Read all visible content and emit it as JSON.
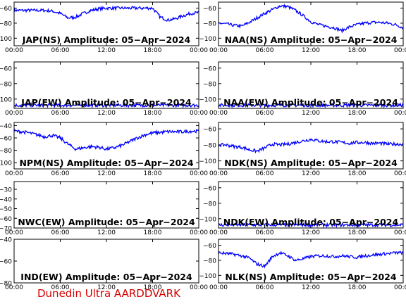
{
  "footer": {
    "credit": "Dunedin Ultra AARDDVARK"
  },
  "chart_data": [
    {
      "type": "line",
      "title": "JAP(NS) Amplitude: 05-Apr-2024",
      "x_ticks": [
        "00:00",
        "06:00",
        "12:00",
        "18:00",
        "00:00"
      ],
      "y_ticks": [
        -60,
        -80,
        -100
      ],
      "ylim": [
        -110,
        -52
      ],
      "series_color": "#0000ff",
      "x": [
        0,
        1,
        2,
        3,
        4,
        5,
        6,
        7,
        8,
        9,
        10,
        11,
        12,
        13,
        14,
        15,
        16,
        17,
        18,
        19,
        20,
        21,
        22,
        23,
        24
      ],
      "values": [
        -63,
        -63,
        -63,
        -63,
        -63,
        -64,
        -67,
        -73,
        -72,
        -67,
        -63,
        -61,
        -60,
        -60,
        -60,
        -60,
        -60,
        -60,
        -60,
        -72,
        -76,
        -74,
        -70,
        -67,
        -66
      ]
    },
    {
      "type": "line",
      "title": "NAA(NS) Amplitude: 05-Apr-2024",
      "x_ticks": [
        "00:00",
        "06:00",
        "12:00",
        "18:00",
        "00:00"
      ],
      "y_ticks": [
        -60,
        -80,
        -100
      ],
      "ylim": [
        -110,
        -52
      ],
      "series_color": "#0000ff",
      "x": [
        0,
        1,
        2,
        3,
        4,
        5,
        6,
        7,
        8,
        9,
        10,
        11,
        12,
        13,
        14,
        15,
        16,
        17,
        18,
        19,
        20,
        21,
        22,
        23,
        24
      ],
      "values": [
        -80,
        -81,
        -83,
        -84,
        -79,
        -73,
        -67,
        -62,
        -57,
        -58,
        -63,
        -70,
        -78,
        -82,
        -84,
        -86,
        -90,
        -85,
        -82,
        -80,
        -79,
        -79,
        -80,
        -82,
        -86
      ]
    },
    {
      "type": "line",
      "title": "JAP(EW) Amplitude: 05-Apr-2024",
      "x_ticks": [
        "00:00",
        "06:00",
        "12:00",
        "18:00",
        "00:00"
      ],
      "y_ticks": [
        -60,
        -80,
        -100
      ],
      "ylim": [
        -112,
        -52
      ],
      "series_color": "#0000ff",
      "x": [
        0,
        6,
        12,
        18,
        24
      ],
      "values": [
        -108,
        -108,
        -108,
        -108,
        -108
      ]
    },
    {
      "type": "line",
      "title": "NAA(EW) Amplitude: 05-Apr-2024",
      "x_ticks": [
        "00:00",
        "06:00",
        "12:00",
        "18:00",
        "00:00"
      ],
      "y_ticks": [
        -60,
        -80,
        -100
      ],
      "ylim": [
        -112,
        -52
      ],
      "series_color": "#0000ff",
      "x": [
        0,
        6,
        12,
        18,
        24
      ],
      "values": [
        -108,
        -108,
        -108,
        -108,
        -108
      ]
    },
    {
      "type": "line",
      "title": "NPM(NS) Amplitude: 05-Apr-2024",
      "x_ticks": [
        "00:00",
        "06:00",
        "12:00",
        "18:00",
        "00:00"
      ],
      "y_ticks": [
        -40,
        -60,
        -80,
        -100
      ],
      "ylim": [
        -110,
        -35
      ],
      "series_color": "#0000ff",
      "x": [
        0,
        1,
        2,
        3,
        4,
        5,
        6,
        7,
        8,
        9,
        10,
        11,
        12,
        13,
        14,
        15,
        16,
        17,
        18,
        19,
        20,
        21,
        22,
        23,
        24
      ],
      "values": [
        -49,
        -50,
        -52,
        -55,
        -58,
        -56,
        -60,
        -70,
        -78,
        -76,
        -74,
        -75,
        -78,
        -76,
        -72,
        -66,
        -60,
        -55,
        -52,
        -51,
        -50,
        -50,
        -50,
        -49,
        -49
      ]
    },
    {
      "type": "line",
      "title": "NDK(NS) Amplitude: 05-Apr-2024",
      "x_ticks": [
        "00:00",
        "06:00",
        "12:00",
        "18:00",
        "00:00"
      ],
      "y_ticks": [
        -60,
        -80,
        -100
      ],
      "ylim": [
        -110,
        -52
      ],
      "series_color": "#0000ff",
      "x": [
        0,
        1,
        2,
        3,
        4,
        5,
        6,
        7,
        8,
        9,
        10,
        11,
        12,
        13,
        14,
        15,
        16,
        17,
        18,
        19,
        20,
        21,
        22,
        23,
        24
      ],
      "values": [
        -80,
        -80,
        -82,
        -83,
        -86,
        -88,
        -84,
        -79,
        -80,
        -79,
        -77,
        -75,
        -73,
        -75,
        -76,
        -76,
        -77,
        -78,
        -77,
        -77,
        -78,
        -78,
        -79,
        -79,
        -79
      ]
    },
    {
      "type": "line",
      "title": "NWC(EW) Amplitude: 05-Apr-2024",
      "x_ticks": [
        "00:00",
        "06:00",
        "12:00",
        "18:00",
        "00:00"
      ],
      "y_ticks": [
        -30,
        -40,
        -50,
        -60,
        -70
      ],
      "ylim": [
        -70,
        -22
      ],
      "series_color": "#0000ff",
      "x": [],
      "values": []
    },
    {
      "type": "line",
      "title": "NDK(EW) Amplitude: 05-Apr-2024",
      "x_ticks": [
        "00:00",
        "06:00",
        "12:00",
        "18:00",
        "00:00"
      ],
      "y_ticks": [
        -60,
        -80,
        -100
      ],
      "ylim": [
        -112,
        -52
      ],
      "series_color": "#0000ff",
      "x": [
        0,
        6,
        12,
        18,
        24
      ],
      "values": [
        -108,
        -108,
        -108,
        -108,
        -108
      ]
    },
    {
      "type": "line",
      "title": "IND(EW) Amplitude: 05-Apr-2024",
      "x_ticks": [
        "00:00",
        "06:00",
        "12:00",
        "18:00",
        "00:00"
      ],
      "y_ticks": [
        -40,
        -60,
        -80
      ],
      "ylim": [
        -80,
        -40
      ],
      "series_color": "#0000ff",
      "x": [],
      "values": []
    },
    {
      "type": "line",
      "title": "NLK(NS) Amplitude: 05-Apr-2024",
      "x_ticks": [
        "00:00",
        "06:00",
        "12:00",
        "18:00",
        "00:00"
      ],
      "y_ticks": [
        -60,
        -80,
        -100
      ],
      "ylim": [
        -110,
        -52
      ],
      "series_color": "#0000ff",
      "x": [
        0,
        1,
        2,
        3,
        4,
        5,
        6,
        7,
        8,
        9,
        10,
        11,
        12,
        13,
        14,
        15,
        16,
        17,
        18,
        19,
        20,
        21,
        22,
        23,
        24
      ],
      "values": [
        -70,
        -71,
        -72,
        -74,
        -77,
        -85,
        -88,
        -75,
        -70,
        -74,
        -80,
        -78,
        -75,
        -74,
        -74,
        -75,
        -74,
        -75,
        -76,
        -74,
        -73,
        -72,
        -71,
        -70,
        -70
      ]
    }
  ]
}
